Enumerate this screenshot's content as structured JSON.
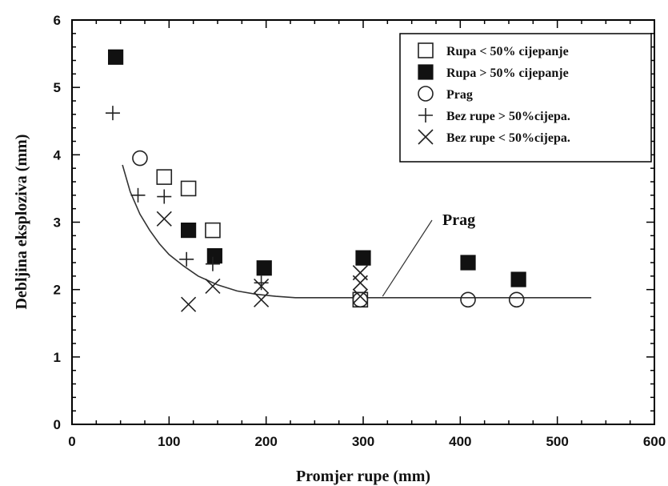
{
  "chart_data": {
    "type": "scatter",
    "xlabel": "Promjer rupe  (mm)",
    "ylabel": "Debljina eksploziva (mm)",
    "xlim": [
      0,
      600
    ],
    "ylim": [
      0,
      6
    ],
    "x_ticks": [
      "0",
      "100",
      "200",
      "300",
      "400",
      "500",
      "600"
    ],
    "y_ticks": [
      "0",
      "1",
      "2",
      "3",
      "4",
      "5",
      "6"
    ],
    "grid": false,
    "legend_position": "top-right",
    "series": [
      {
        "name": "Rupa  < 50% cijepanje",
        "marker": "open-square",
        "points": [
          [
            95,
            3.67
          ],
          [
            120,
            3.5
          ],
          [
            145,
            2.88
          ],
          [
            297,
            1.85
          ]
        ]
      },
      {
        "name": "Rupa  > 50% cijepanje",
        "marker": "filled-square",
        "points": [
          [
            45,
            5.45
          ],
          [
            120,
            2.88
          ],
          [
            147,
            2.5
          ],
          [
            198,
            2.32
          ],
          [
            300,
            2.47
          ],
          [
            408,
            2.4
          ],
          [
            460,
            2.15
          ]
        ]
      },
      {
        "name": "Prag",
        "marker": "open-circle",
        "points": [
          [
            70,
            3.95
          ],
          [
            297,
            1.85
          ],
          [
            408,
            1.85
          ],
          [
            458,
            1.85
          ]
        ]
      },
      {
        "name": "Bez rupe  > 50%cijepa.",
        "marker": "plus",
        "points": [
          [
            42,
            4.62
          ],
          [
            68,
            3.4
          ],
          [
            95,
            3.38
          ],
          [
            118,
            2.45
          ],
          [
            145,
            2.38
          ],
          [
            195,
            2.1
          ]
        ]
      },
      {
        "name": "Bez rupe  < 50%cijepa.",
        "marker": "x",
        "points": [
          [
            95,
            3.05
          ],
          [
            120,
            1.78
          ],
          [
            145,
            2.05
          ],
          [
            195,
            1.85
          ],
          [
            195,
            2.05
          ],
          [
            297,
            1.9
          ],
          [
            297,
            2.1
          ],
          [
            297,
            2.25
          ]
        ]
      }
    ],
    "threshold_curve": {
      "label": "Prag",
      "points": [
        [
          52,
          3.85
        ],
        [
          60,
          3.45
        ],
        [
          70,
          3.12
        ],
        [
          80,
          2.88
        ],
        [
          90,
          2.68
        ],
        [
          100,
          2.52
        ],
        [
          115,
          2.35
        ],
        [
          130,
          2.2
        ],
        [
          150,
          2.07
        ],
        [
          170,
          1.98
        ],
        [
          190,
          1.93
        ],
        [
          210,
          1.9
        ],
        [
          230,
          1.88
        ],
        [
          300,
          1.88
        ],
        [
          400,
          1.88
        ],
        [
          535,
          1.88
        ]
      ]
    },
    "annotation": {
      "text": "Prag",
      "arrow_to": [
        320,
        1.9
      ]
    }
  }
}
